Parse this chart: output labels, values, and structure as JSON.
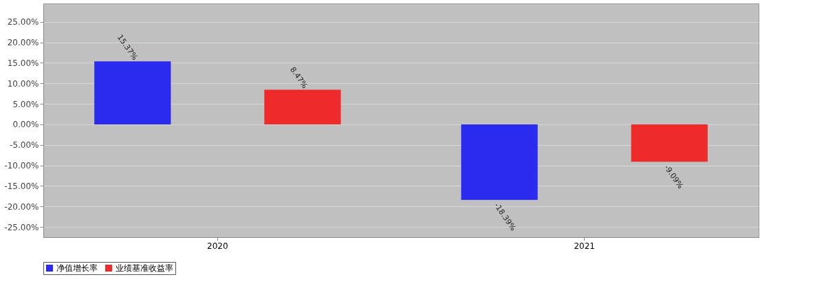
{
  "chart_data": {
    "type": "bar",
    "categories": [
      "2020",
      "2021"
    ],
    "series": [
      {
        "name": "净值增长率",
        "color": "#2b2bf0",
        "values": [
          15.37,
          -18.39
        ],
        "value_labels": [
          "15.37%",
          "-18.39%"
        ]
      },
      {
        "name": "业绩基准收益率",
        "color": "#ee2a2a",
        "values": [
          8.47,
          -9.09
        ],
        "value_labels": [
          "8.47%",
          "-9.09%"
        ]
      }
    ],
    "ylim": [
      -27.5,
      29.5
    ],
    "yticks": [
      {
        "value": -25,
        "label": "-25.00%"
      },
      {
        "value": -20,
        "label": "-20.00%"
      },
      {
        "value": -15,
        "label": "-15.00%"
      },
      {
        "value": -10,
        "label": "-10.00%"
      },
      {
        "value": -5,
        "label": "-5.00%"
      },
      {
        "value": 0,
        "label": "0.00%"
      },
      {
        "value": 5,
        "label": "5.00%"
      },
      {
        "value": 10,
        "label": "10.00%"
      },
      {
        "value": 15,
        "label": "15.00%"
      },
      {
        "value": 20,
        "label": "20.00%"
      },
      {
        "value": 25,
        "label": "25.00%"
      }
    ],
    "grid": "y",
    "legend": "bottom"
  }
}
